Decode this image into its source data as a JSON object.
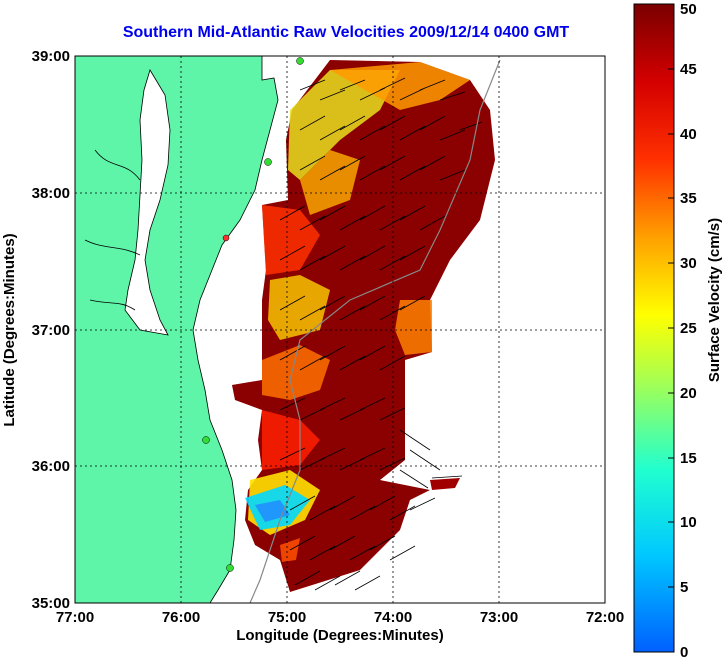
{
  "title": "Southern Mid-Atlantic Raw Velocities 2009/12/14 0400 GMT",
  "axes": {
    "xlabel": "Longitude (Degrees:Minutes)",
    "ylabel": "Latitude (Degrees:Minutes)",
    "x_ticks": [
      "77:00",
      "76:00",
      "75:00",
      "74:00",
      "73:00",
      "72:00"
    ],
    "y_ticks": [
      "39:00",
      "38:00",
      "37:00",
      "36:00",
      "35:00"
    ]
  },
  "colorbar": {
    "label": "Surface Velocity (cm/s)",
    "ticks": [
      "0",
      "5",
      "10",
      "15",
      "20",
      "25",
      "30",
      "35",
      "40",
      "45",
      "50"
    ],
    "range": [
      0,
      50
    ]
  },
  "colors": {
    "land": "#5ef5a8",
    "title": "#0000ee",
    "grid": "#000000",
    "arrow": "#000000",
    "station": "#33dd33"
  }
}
